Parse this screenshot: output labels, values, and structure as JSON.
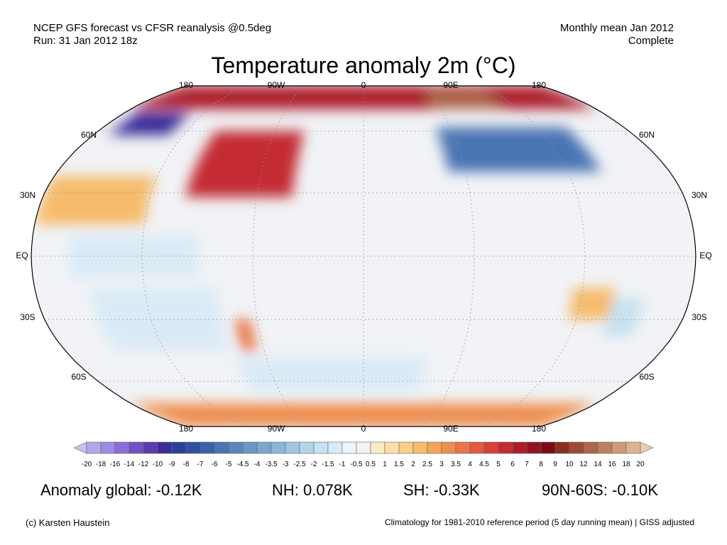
{
  "header": {
    "line1": "NCEP GFS forecast vs CFSR reanalysis @0.5deg",
    "line2": "Run: 31 Jan 2012 18z",
    "right1": "Monthly mean Jan 2012",
    "right2": "Complete"
  },
  "title": "Temperature anomaly 2m (°C)",
  "map": {
    "projection": "robinson",
    "gridlines": "dotted",
    "lon_labels_top": [
      "180",
      "90W",
      "0",
      "90E",
      "180"
    ],
    "lon_labels_bottom": [
      "180",
      "90W",
      "0",
      "90E",
      "180"
    ],
    "lat_labels": [
      "60N",
      "30N",
      "EQ",
      "30S",
      "60S"
    ],
    "fields": [
      {
        "name": "arctic-warm",
        "lon": [
          -180,
          180
        ],
        "lat": [
          72,
          90
        ],
        "anomaly": 6
      },
      {
        "name": "siberia-warm",
        "lon": [
          55,
          110
        ],
        "lat": [
          72,
          84
        ],
        "anomaly": 12
      },
      {
        "name": "alaska-cold",
        "lon": [
          -170,
          -130
        ],
        "lat": [
          58,
          70
        ],
        "anomaly": -10
      },
      {
        "name": "eastern-north-america-warm",
        "lon": [
          -100,
          -40
        ],
        "lat": [
          28,
          60
        ],
        "anomaly": 5
      },
      {
        "name": "central-asia-cold",
        "lon": [
          50,
          140
        ],
        "lat": [
          40,
          62
        ],
        "anomaly": -6
      },
      {
        "name": "north-pacific-warm",
        "lon": [
          -180,
          -120
        ],
        "lat": [
          15,
          38
        ],
        "anomaly": 2
      },
      {
        "name": "equatorial-pacific-cold",
        "lon": [
          -160,
          -90
        ],
        "lat": [
          -10,
          10
        ],
        "anomaly": -1.5
      },
      {
        "name": "south-pacific-cold",
        "lon": [
          -150,
          -80
        ],
        "lat": [
          -45,
          -15
        ],
        "anomaly": -1.5
      },
      {
        "name": "patagonia-warm",
        "lon": [
          -73,
          -64
        ],
        "lat": [
          -45,
          -30
        ],
        "anomaly": 3.5
      },
      {
        "name": "australia-warm",
        "lon": [
          115,
          138
        ],
        "lat": [
          -30,
          -15
        ],
        "anomaly": 2
      },
      {
        "name": "east-australia-cold",
        "lon": [
          138,
          155
        ],
        "lat": [
          -38,
          -20
        ],
        "anomaly": -2
      },
      {
        "name": "southern-ocean-cold",
        "lon": [
          -80,
          40
        ],
        "lat": [
          -65,
          -48
        ],
        "anomaly": -1.5
      },
      {
        "name": "antarctic-warm",
        "lon": [
          -180,
          180
        ],
        "lat": [
          -90,
          -72
        ],
        "anomaly": 3
      }
    ]
  },
  "colorbar": {
    "labels": [
      "-20",
      "-18",
      "-16",
      "-14",
      "-12",
      "-10",
      "-9",
      "-8",
      "-7",
      "-6",
      "-5",
      "-4.5",
      "-4",
      "-3.5",
      "-3",
      "-2.5",
      "-2",
      "-1.5",
      "-1",
      "-0.5",
      "0.5",
      "1",
      "1.5",
      "2",
      "2.5",
      "3",
      "3.5",
      "4",
      "4.5",
      "5",
      "6",
      "7",
      "8",
      "9",
      "10",
      "12",
      "14",
      "16",
      "18",
      "20"
    ],
    "colors": [
      "#c8c0f0",
      "#b3a6ec",
      "#9e8be4",
      "#8970d8",
      "#6f52c4",
      "#5a3cae",
      "#392c96",
      "#2f3d99",
      "#31509f",
      "#3b62a8",
      "#4a75b3",
      "#5b86bd",
      "#6a96c6",
      "#7ba7cf",
      "#8cb6d8",
      "#9fc6e1",
      "#b3d4e9",
      "#c6e1f0",
      "#daebf6",
      "#edf4fa",
      "#f3f3f3",
      "#fbecc6",
      "#fbdfa8",
      "#f9cf8a",
      "#f6bb6c",
      "#f2a55a",
      "#ee8e4e",
      "#e97546",
      "#e25a3f",
      "#d6403a",
      "#c42b33",
      "#ac1d2b",
      "#911322",
      "#7b0c17",
      "#8c2e1e",
      "#9c4a35",
      "#ad654c",
      "#bd7f62",
      "#cd9a7a",
      "#dcb392",
      "#eacbad"
    ]
  },
  "stats": [
    {
      "label": "Anomaly global: -0.12K"
    },
    {
      "label": "NH: 0.078K"
    },
    {
      "label": "SH: -0.33K"
    },
    {
      "label": "90N-60S: -0.10K"
    }
  ],
  "footer": {
    "left": "(c) Karsten Haustein",
    "right": "Climatology for 1981-2010 reference period (5 day running mean) | GISS adjusted"
  }
}
